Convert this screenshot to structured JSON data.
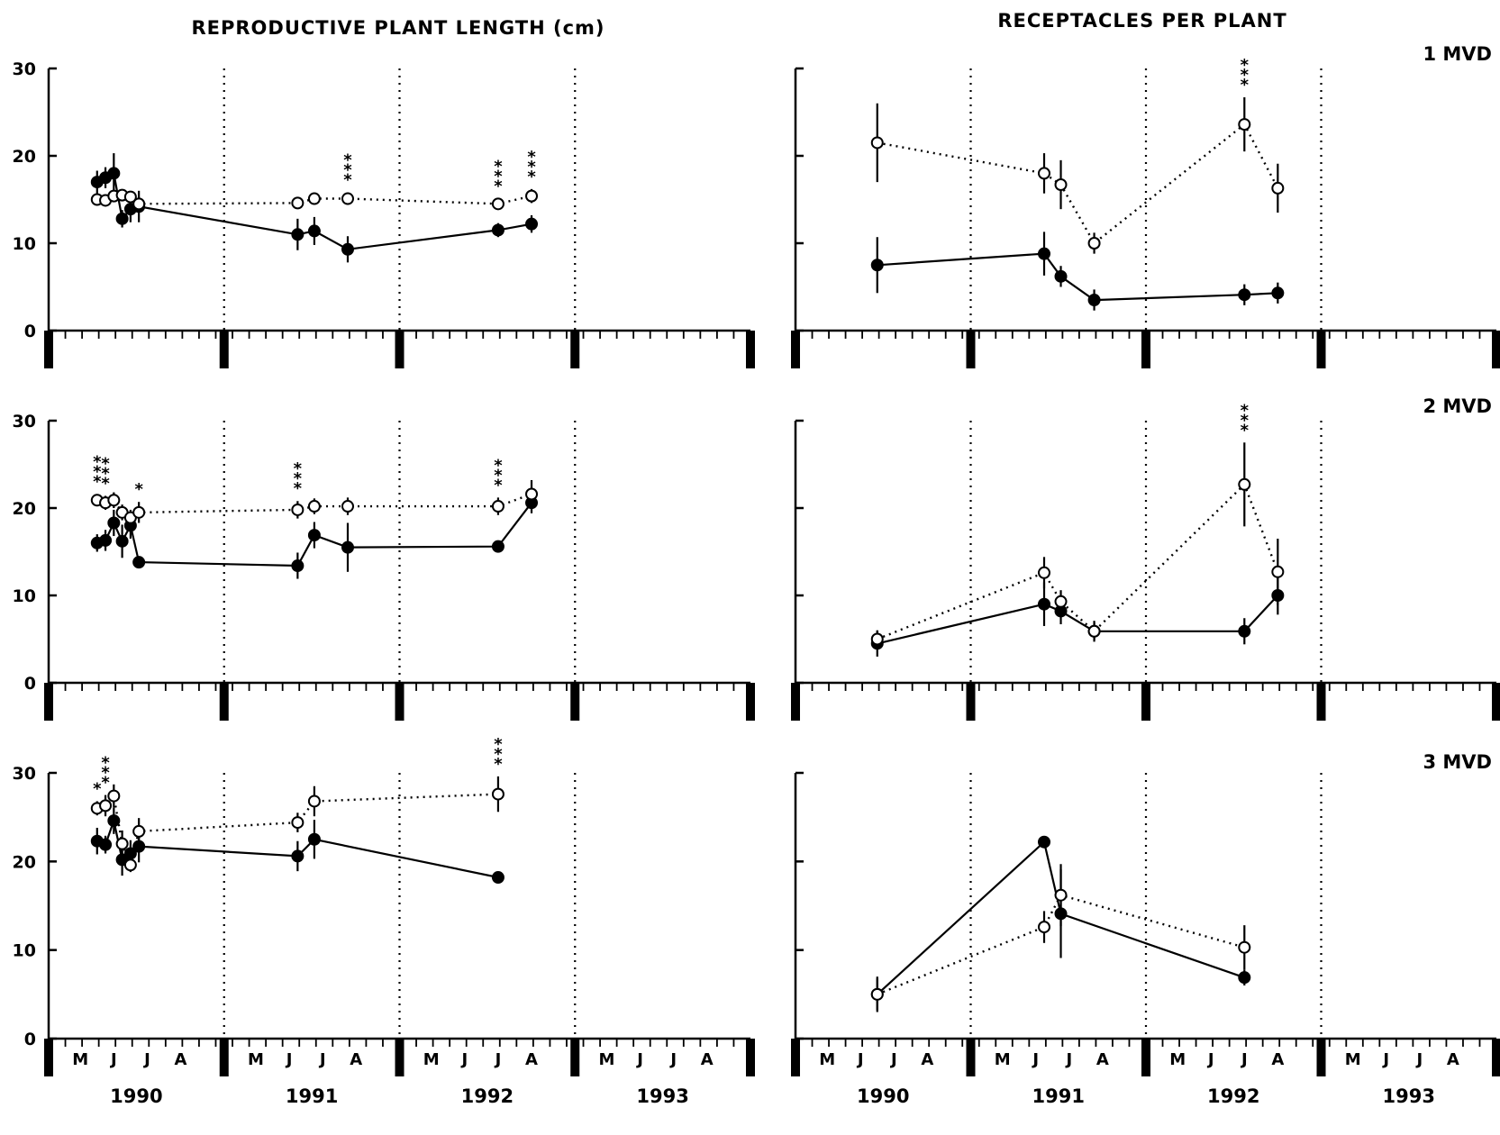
{
  "figure": {
    "col_titles": [
      "REPRODUCTIVE PLANT LENGTH (cm)",
      "RECEPTACLES PER PLANT"
    ],
    "row_labels": [
      "1 MVD",
      "2 MVD",
      "3 MVD"
    ],
    "y_ticks": [
      "0",
      "10",
      "20",
      "30"
    ],
    "month_labels": [
      "M",
      "J",
      "J",
      "A"
    ],
    "years": [
      "1990",
      "1991",
      "1992",
      "1993"
    ]
  },
  "chart_data": [
    {
      "type": "line",
      "panel": "length-1mvd",
      "ylim": [
        0,
        30
      ],
      "x_unit": "month index from May 1990 (0 = May 1990)",
      "series": [
        {
          "marker": "filled-circle",
          "line": "solid",
          "x": [
            1.0,
            1.5,
            2.0,
            2.5,
            3.0,
            3.5,
            13.0,
            14.0,
            16.0,
            25.0,
            27.0
          ],
          "y": [
            17.0,
            17.5,
            18.0,
            12.8,
            13.9,
            14.2,
            11.0,
            11.4,
            9.3,
            11.5,
            12.2
          ],
          "err": [
            1.3,
            1.2,
            2.3,
            1.0,
            1.5,
            1.8,
            1.8,
            1.6,
            1.5,
            0.8,
            1.0
          ]
        },
        {
          "marker": "open-circle",
          "line": "dotted",
          "x": [
            1.0,
            1.5,
            2.0,
            2.5,
            3.0,
            3.5,
            13.0,
            14.0,
            16.0,
            25.0,
            27.0
          ],
          "y": [
            15.0,
            14.9,
            15.4,
            15.5,
            15.3,
            14.5,
            14.6,
            15.1,
            15.1,
            14.5,
            15.4
          ],
          "err": [
            0.5,
            0.5,
            0.6,
            0.5,
            0.6,
            0.8,
            0.6,
            0.6,
            0.7,
            0.6,
            0.8
          ]
        }
      ],
      "significance": [
        {
          "x": 16.0,
          "label": "***"
        },
        {
          "x": 25.0,
          "label": "***"
        },
        {
          "x": 27.0,
          "label": "***"
        }
      ]
    },
    {
      "type": "line",
      "panel": "receptacles-1mvd",
      "ylim": [
        0,
        30
      ],
      "series": [
        {
          "marker": "filled-circle",
          "line": "solid",
          "x": [
            3.0,
            13.0,
            14.0,
            16.0,
            25.0,
            27.0
          ],
          "y": [
            7.5,
            8.8,
            6.2,
            3.5,
            4.1,
            4.3
          ],
          "err": [
            3.2,
            2.5,
            1.2,
            1.2,
            1.2,
            1.2
          ]
        },
        {
          "marker": "open-circle",
          "line": "dotted",
          "x": [
            3.0,
            13.0,
            14.0,
            16.0,
            25.0,
            27.0
          ],
          "y": [
            21.5,
            18.0,
            16.7,
            10.0,
            23.6,
            16.3
          ],
          "err": [
            4.5,
            2.3,
            2.8,
            1.2,
            3.1,
            2.8
          ]
        }
      ],
      "significance": [
        {
          "x": 25.0,
          "label": "***"
        }
      ]
    },
    {
      "type": "line",
      "panel": "length-2mvd",
      "ylim": [
        0,
        30
      ],
      "series": [
        {
          "marker": "filled-circle",
          "line": "solid",
          "x": [
            1.0,
            1.5,
            2.0,
            2.5,
            3.0,
            3.5,
            13.0,
            14.0,
            16.0,
            25.0,
            27.0
          ],
          "y": [
            16.0,
            16.3,
            18.3,
            16.2,
            18.0,
            13.8,
            13.4,
            16.9,
            15.5,
            15.6,
            20.6
          ],
          "err": [
            1.0,
            1.2,
            1.5,
            1.9,
            1.5,
            0.5,
            1.5,
            1.5,
            2.8,
            0.5,
            1.2
          ]
        },
        {
          "marker": "open-circle",
          "line": "dotted",
          "x": [
            1.0,
            1.5,
            2.0,
            2.5,
            3.0,
            3.5,
            13.0,
            14.0,
            16.0,
            25.0,
            27.0
          ],
          "y": [
            20.9,
            20.6,
            20.9,
            19.5,
            18.9,
            19.5,
            19.8,
            20.2,
            20.2,
            20.2,
            21.6
          ],
          "err": [
            0.7,
            0.8,
            0.9,
            0.9,
            0.9,
            1.2,
            1.0,
            0.9,
            1.0,
            1.0,
            1.6
          ]
        }
      ],
      "significance": [
        {
          "x": 1.0,
          "label": "***"
        },
        {
          "x": 1.5,
          "label": "***"
        },
        {
          "x": 3.5,
          "label": "*"
        },
        {
          "x": 13.0,
          "label": "***"
        },
        {
          "x": 25.0,
          "label": "***"
        }
      ]
    },
    {
      "type": "line",
      "panel": "receptacles-2mvd",
      "ylim": [
        0,
        30
      ],
      "series": [
        {
          "marker": "filled-circle",
          "line": "solid",
          "x": [
            3.0,
            13.0,
            14.0,
            16.0,
            25.0,
            27.0
          ],
          "y": [
            4.5,
            9.0,
            8.2,
            5.9,
            5.9,
            10.0
          ],
          "err": [
            1.5,
            2.5,
            1.5,
            1.2,
            1.5,
            2.2
          ]
        },
        {
          "marker": "open-circle",
          "line": "dotted",
          "x": [
            3.0,
            13.0,
            14.0,
            16.0,
            25.0,
            27.0
          ],
          "y": [
            5.0,
            12.6,
            9.3,
            5.9,
            22.7,
            12.7
          ],
          "err": [
            1.0,
            1.8,
            1.3,
            1.0,
            4.8,
            3.8
          ]
        }
      ],
      "significance": [
        {
          "x": 25.0,
          "label": "***"
        }
      ]
    },
    {
      "type": "line",
      "panel": "length-3mvd",
      "ylim": [
        0,
        30
      ],
      "series": [
        {
          "marker": "filled-circle",
          "line": "solid",
          "x": [
            1.0,
            1.5,
            2.0,
            2.5,
            3.0,
            3.5,
            13.0,
            14.0,
            25.0
          ],
          "y": [
            22.3,
            21.9,
            24.6,
            20.2,
            20.9,
            21.7,
            20.6,
            22.5,
            18.2
          ],
          "err": [
            1.5,
            1.0,
            1.5,
            1.8,
            1.5,
            1.8,
            1.7,
            2.2,
            0.3
          ]
        },
        {
          "marker": "open-circle",
          "line": "dotted",
          "x": [
            1.0,
            1.5,
            2.0,
            2.5,
            3.0,
            3.5,
            13.0,
            14.0,
            25.0
          ],
          "y": [
            26.0,
            26.3,
            27.4,
            22.0,
            19.6,
            23.4,
            24.4,
            26.8,
            27.6
          ],
          "err": [
            0.8,
            1.2,
            1.3,
            1.5,
            0.8,
            1.5,
            1.1,
            1.7,
            2.0
          ]
        }
      ],
      "significance": [
        {
          "x": 1.0,
          "label": "*"
        },
        {
          "x": 1.5,
          "label": "***"
        },
        {
          "x": 25.0,
          "label": "***"
        }
      ]
    },
    {
      "type": "line",
      "panel": "receptacles-3mvd",
      "ylim": [
        0,
        30
      ],
      "series": [
        {
          "marker": "filled-circle",
          "line": "solid",
          "x": [
            3.0,
            13.0,
            14.0,
            25.0
          ],
          "y": [
            5.0,
            22.2,
            14.1,
            6.9
          ],
          "err": [
            2.0,
            0.5,
            5.0,
            0.9
          ]
        },
        {
          "marker": "open-circle",
          "line": "dotted",
          "x": [
            3.0,
            13.0,
            14.0,
            25.0
          ],
          "y": [
            5.0,
            12.6,
            16.2,
            10.3
          ],
          "err": [
            1.8,
            1.8,
            3.5,
            2.5
          ]
        }
      ],
      "significance": []
    }
  ]
}
